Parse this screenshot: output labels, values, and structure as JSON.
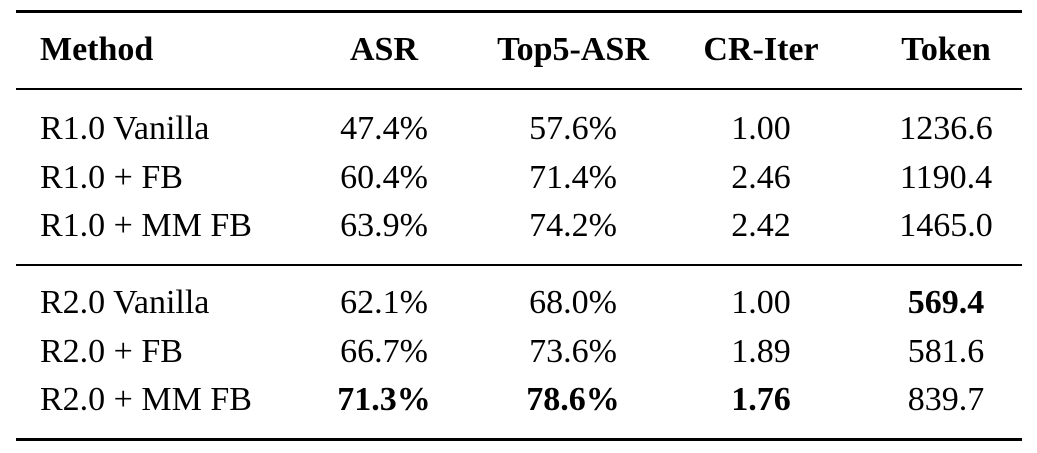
{
  "table": {
    "header": [
      "Method",
      "ASR",
      "Top5-ASR",
      "CR-Iter",
      "Token"
    ],
    "groups": [
      [
        [
          "R1.0 Vanilla",
          "47.4%",
          "57.6%",
          "1.00",
          "1236.6"
        ],
        [
          "R1.0 + FB",
          "60.4%",
          "71.4%",
          "2.46",
          "1190.4"
        ],
        [
          "R1.0 + MM FB",
          "63.9%",
          "74.2%",
          "2.42",
          "1465.0"
        ]
      ],
      [
        [
          "R2.0 Vanilla",
          "62.1%",
          "68.0%",
          "1.00",
          "569.4"
        ],
        [
          "R2.0 + FB",
          "66.7%",
          "73.6%",
          "1.89",
          "581.6"
        ],
        [
          "R2.0 + MM FB",
          "71.3%",
          "78.6%",
          "1.76",
          "839.7"
        ]
      ]
    ],
    "bold": [
      [
        1,
        0,
        4
      ],
      [
        1,
        2,
        1
      ],
      [
        1,
        2,
        2
      ],
      [
        1,
        2,
        3
      ]
    ]
  }
}
